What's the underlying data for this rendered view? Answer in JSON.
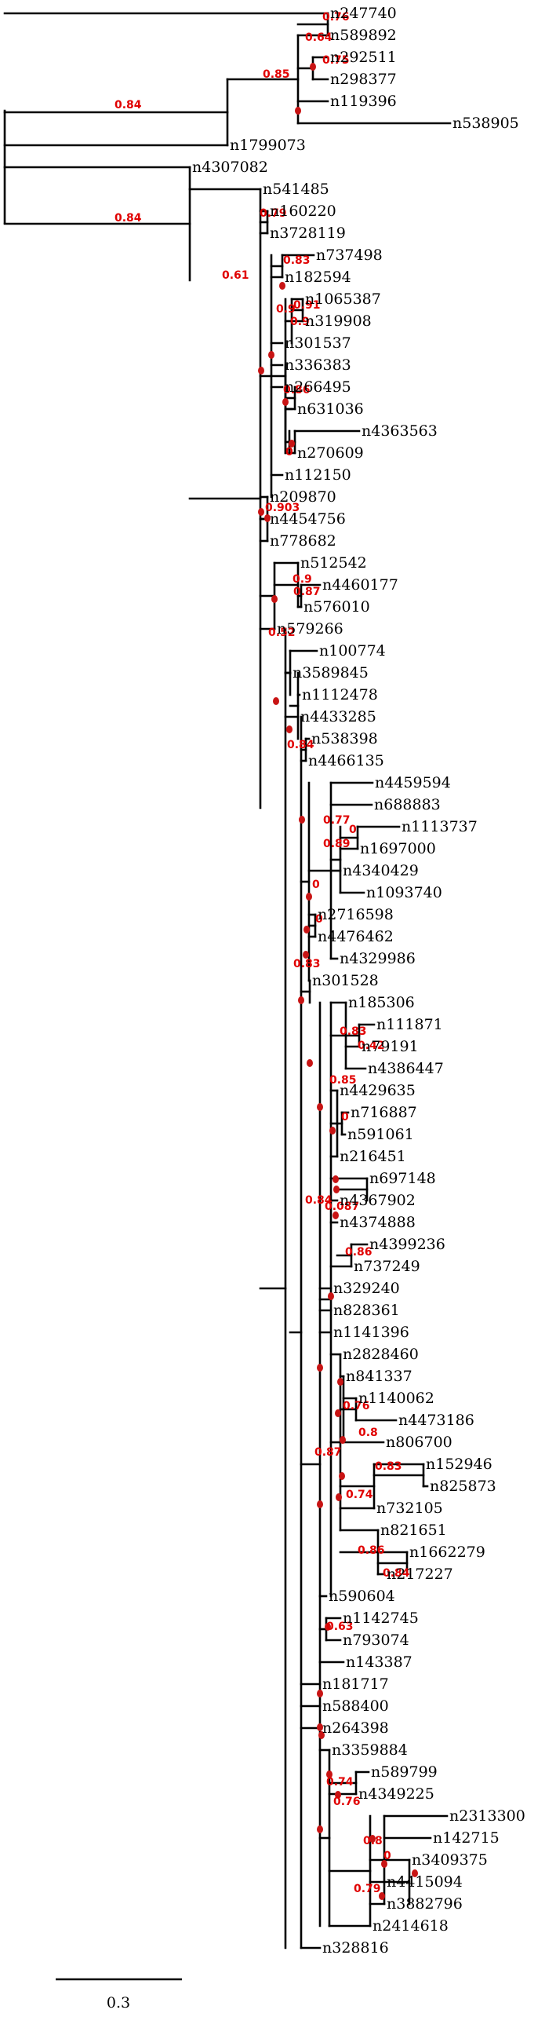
{
  "colors": {
    "branch": "#000000",
    "support": "#e00000",
    "node_marker": "#c81414"
  },
  "scale_bar": {
    "label": "0.3"
  },
  "leaves": [
    "n247740",
    "n589892",
    "n292511",
    "n298377",
    "n119396",
    "n538905",
    "n1799073",
    "n4307082",
    "n541485",
    "n160220",
    "n3728119",
    "n737498",
    "n182594",
    "n1065387",
    "n319908",
    "n301537",
    "n336383",
    "n266495",
    "n631036",
    "n4363563",
    "n270609",
    "n112150",
    "n209870",
    "n4454756",
    "n778682",
    "n512542",
    "n4460177",
    "n576010",
    "n579266",
    "n100774",
    "n3589845",
    "n1112478",
    "n4433285",
    "n538398",
    "n4466135",
    "n4459594",
    "n688883",
    "n1113737",
    "n1697000",
    "n4340429",
    "n1093740",
    "n2716598",
    "n4476462",
    "n4329986",
    "n301528",
    "n185306",
    "n111871",
    "n79191",
    "n4386447",
    "n4429635",
    "n716887",
    "n591061",
    "n216451",
    "n697148",
    "n4367902",
    "n4374888",
    "n4399236",
    "n737249",
    "n329240",
    "n828361",
    "n1141396",
    "n2828460",
    "n841337",
    "n1140062",
    "n4473186",
    "n806700",
    "n152946",
    "n825873",
    "n732105",
    "n821651",
    "n1662279",
    "n217227",
    "n590604",
    "n1142745",
    "n793074",
    "n143387",
    "n181717",
    "n588400",
    "n264398",
    "n3359884",
    "n589799",
    "n4349225",
    "n2313300",
    "n142715",
    "n3409375",
    "n4415094",
    "n3882796",
    "n2414618",
    "n328816"
  ],
  "support_values": [
    "0.84",
    "0.84",
    "0.85",
    "0.64",
    "0.76",
    "0.75",
    "0.61",
    "0.79",
    "0.83",
    "0.9",
    "0.91",
    "0.9",
    "0.86",
    "0",
    "0.903",
    "0.9",
    "0.87",
    "0.52",
    "0.84",
    "0.77",
    "0",
    "0.89",
    "0",
    "0",
    "0.83",
    "0.83",
    "0.42",
    "0.85",
    "0",
    "0.84",
    "0.087",
    "0.86",
    "0.76",
    "0.8",
    "0.87",
    "0.83",
    "0.74",
    "0.86",
    "0.84",
    "0.63",
    "0.74",
    "0.76",
    "0.8",
    "0",
    "0.79"
  ]
}
